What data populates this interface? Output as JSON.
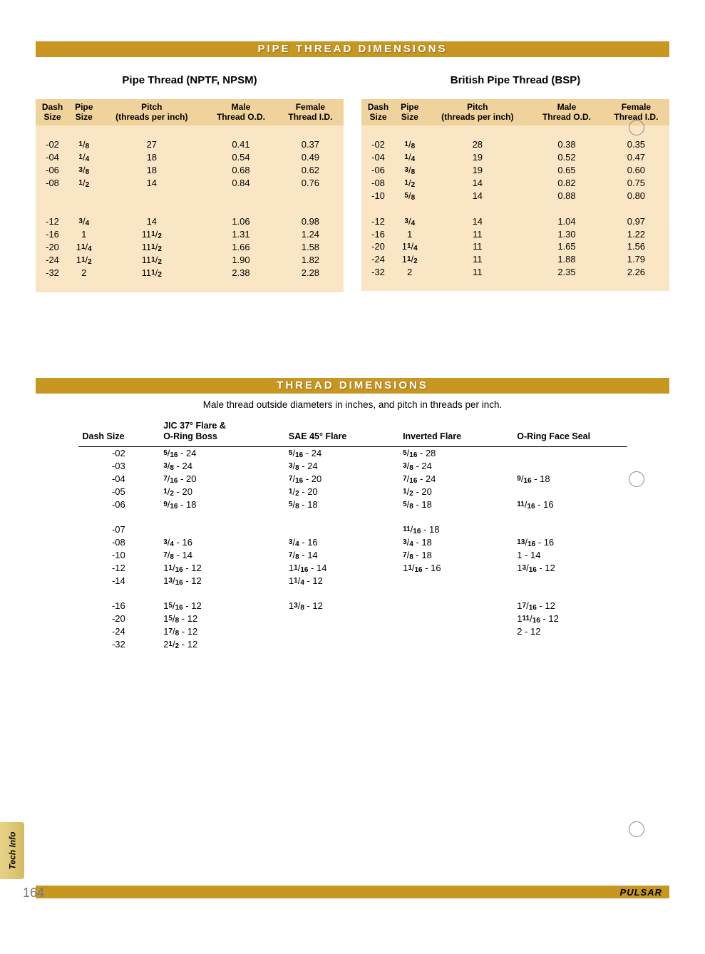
{
  "banner1": "PIPE THREAD DIMENSIONS",
  "banner2": "THREAD DIMENSIONS",
  "subtitle": "Male thread outside diameters in inches, and pitch in threads per inch.",
  "page_number": "164",
  "brand": "PULSAR",
  "side_tab": "Tech Info",
  "colors": {
    "banner_bg": "#c79722",
    "table_bg": "#fae6c4",
    "header_bg": "#efd29c"
  },
  "pipe_headers": [
    "Dash\nSize",
    "Pipe\nSize",
    "Pitch\n(threads per inch)",
    "Male\nThread O.D.",
    "Female\nThread I.D."
  ],
  "table_left": {
    "title": "Pipe Thread (NPTF, NPSM)",
    "rows": [
      {
        "dash": "-02",
        "pipe": "1/8",
        "pitch": "27",
        "od": "0.41",
        "id": "0.37"
      },
      {
        "dash": "-04",
        "pipe": "1/4",
        "pitch": "18",
        "od": "0.54",
        "id": "0.49"
      },
      {
        "dash": "-06",
        "pipe": "3/8",
        "pitch": "18",
        "od": "0.68",
        "id": "0.62"
      },
      {
        "dash": "-08",
        "pipe": "1/2",
        "pitch": "14",
        "od": "0.84",
        "id": "0.76"
      },
      {
        "gap": true
      },
      {
        "gap": true
      },
      {
        "dash": "-12",
        "pipe": "3/4",
        "pitch": "14",
        "od": "1.06",
        "id": "0.98"
      },
      {
        "dash": "-16",
        "pipe": "1",
        "pitch": "11 1/2",
        "od": "1.31",
        "id": "1.24"
      },
      {
        "dash": "-20",
        "pipe": "1 1/4",
        "pitch": "11 1/2",
        "od": "1.66",
        "id": "1.58"
      },
      {
        "dash": "-24",
        "pipe": "1 1/2",
        "pitch": "11 1/2",
        "od": "1.90",
        "id": "1.82"
      },
      {
        "dash": "-32",
        "pipe": "2",
        "pitch": "11 1/2",
        "od": "2.38",
        "id": "2.28"
      }
    ]
  },
  "table_right": {
    "title": "British Pipe Thread (BSP)",
    "rows": [
      {
        "dash": "-02",
        "pipe": "1/8",
        "pitch": "28",
        "od": "0.38",
        "id": "0.35"
      },
      {
        "dash": "-04",
        "pipe": "1/4",
        "pitch": "19",
        "od": "0.52",
        "id": "0.47"
      },
      {
        "dash": "-06",
        "pipe": "3/8",
        "pitch": "19",
        "od": "0.65",
        "id": "0.60"
      },
      {
        "dash": "-08",
        "pipe": "1/2",
        "pitch": "14",
        "od": "0.82",
        "id": "0.75"
      },
      {
        "dash": "-10",
        "pipe": "5/8",
        "pitch": "14",
        "od": "0.88",
        "id": "0.80"
      },
      {
        "gap": true
      },
      {
        "dash": "-12",
        "pipe": "3/4",
        "pitch": "14",
        "od": "1.04",
        "id": "0.97"
      },
      {
        "dash": "-16",
        "pipe": "1",
        "pitch": "11",
        "od": "1.30",
        "id": "1.22"
      },
      {
        "dash": "-20",
        "pipe": "1 1/4",
        "pitch": "11",
        "od": "1.65",
        "id": "1.56"
      },
      {
        "dash": "-24",
        "pipe": "1 1/2",
        "pitch": "11",
        "od": "1.88",
        "id": "1.79"
      },
      {
        "dash": "-32",
        "pipe": "2",
        "pitch": "11",
        "od": "2.35",
        "id": "2.26"
      }
    ]
  },
  "thread_headers": [
    "Dash Size",
    "JIC 37° Flare &\nO-Ring Boss",
    "SAE 45° Flare",
    "Inverted Flare",
    "O-Ring Face Seal"
  ],
  "thread_rows": [
    {
      "dash": "-02",
      "jic": "5/16 - 24",
      "sae": "5/16 - 24",
      "inv": "5/16 - 28",
      "orfs": ""
    },
    {
      "dash": "-03",
      "jic": "3/8 - 24",
      "sae": "3/8 - 24",
      "inv": "3/8 - 24",
      "orfs": ""
    },
    {
      "dash": "-04",
      "jic": "7/16 - 20",
      "sae": "7/16 - 20",
      "inv": "7/16 - 24",
      "orfs": "9/16 - 18"
    },
    {
      "dash": "-05",
      "jic": "1/2 - 20",
      "sae": "1/2 - 20",
      "inv": "1/2 - 20",
      "orfs": ""
    },
    {
      "dash": "-06",
      "jic": "9/16 - 18",
      "sae": "5/8 - 18",
      "inv": "5/8 - 18",
      "orfs": "11/16 - 16"
    },
    {
      "gap": true
    },
    {
      "dash": "-07",
      "jic": "",
      "sae": "",
      "inv": "11/16 - 18",
      "orfs": ""
    },
    {
      "dash": "-08",
      "jic": "3/4 - 16",
      "sae": "3/4 - 16",
      "inv": "3/4 - 18",
      "orfs": "13/16 - 16"
    },
    {
      "dash": "-10",
      "jic": "7/8 - 14",
      "sae": "7/8 - 14",
      "inv": "7/8 - 18",
      "orfs": "1 - 14"
    },
    {
      "dash": "-12",
      "jic": "1 1/16 - 12",
      "sae": "1 1/16 - 14",
      "inv": "1 1/16 - 16",
      "orfs": "1 3/16 - 12"
    },
    {
      "dash": "-14",
      "jic": "1 3/16 - 12",
      "sae": "1 1/4 - 12",
      "inv": "",
      "orfs": ""
    },
    {
      "gap": true
    },
    {
      "dash": "-16",
      "jic": "1 5/16 - 12",
      "sae": "1 3/8 - 12",
      "inv": "",
      "orfs": "1 7/16 - 12"
    },
    {
      "dash": "-20",
      "jic": "1 5/8 - 12",
      "sae": "",
      "inv": "",
      "orfs": "1 11/16 - 12"
    },
    {
      "dash": "-24",
      "jic": "1 7/8 - 12",
      "sae": "",
      "inv": "",
      "orfs": "2 - 12"
    },
    {
      "dash": "-32",
      "jic": "2 1/2 - 12",
      "sae": "",
      "inv": "",
      "orfs": ""
    }
  ]
}
